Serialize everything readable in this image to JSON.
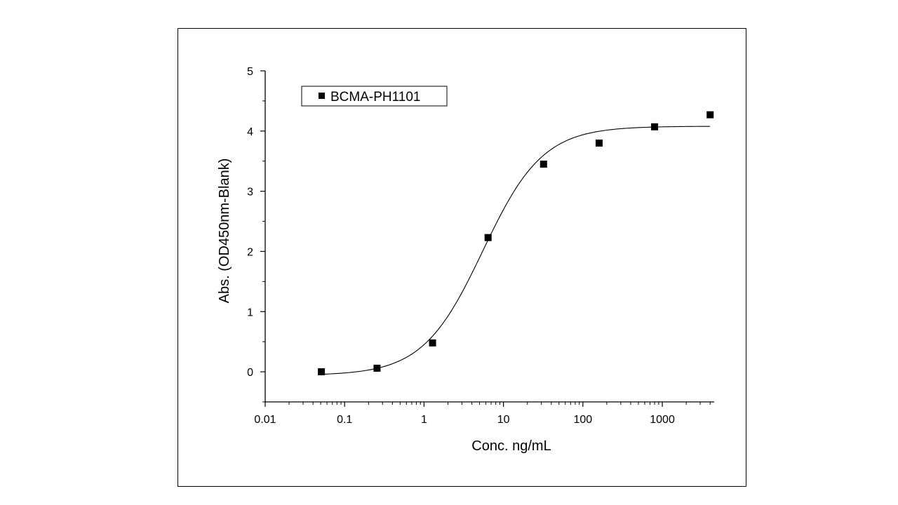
{
  "chart_data": {
    "type": "scatter",
    "title": "",
    "xlabel": "Conc. ng/mL",
    "ylabel": "Abs. (OD450nm-Blank)",
    "x_scale": "log",
    "xlim": [
      0.01,
      4500
    ],
    "ylim": [
      -0.5,
      5
    ],
    "x_ticks": [
      {
        "value": 0.01,
        "label": "0.01"
      },
      {
        "value": 0.1,
        "label": "0.1"
      },
      {
        "value": 1,
        "label": "1"
      },
      {
        "value": 10,
        "label": "10"
      },
      {
        "value": 100,
        "label": "100"
      },
      {
        "value": 1000,
        "label": "1000"
      }
    ],
    "y_ticks": [
      {
        "value": 0,
        "label": "0"
      },
      {
        "value": 1,
        "label": "1"
      },
      {
        "value": 2,
        "label": "2"
      },
      {
        "value": 3,
        "label": "3"
      },
      {
        "value": 4,
        "label": "4"
      },
      {
        "value": 5,
        "label": "5"
      }
    ],
    "grid": false,
    "legend_position": "top-left",
    "series": [
      {
        "name": "BCMA-PH1101",
        "marker": "square",
        "color": "#000000",
        "x": [
          0.051,
          0.256,
          1.28,
          6.4,
          32,
          160,
          800,
          4000
        ],
        "y": [
          0.0,
          0.06,
          0.48,
          2.23,
          3.45,
          3.8,
          4.07,
          4.27
        ]
      }
    ],
    "fit_curve": {
      "type": "4PL",
      "bottom": -0.06,
      "top": 4.08,
      "ec50": 5.5,
      "hill": 1.15,
      "x_range": [
        0.051,
        4000
      ],
      "color": "#000000"
    }
  }
}
